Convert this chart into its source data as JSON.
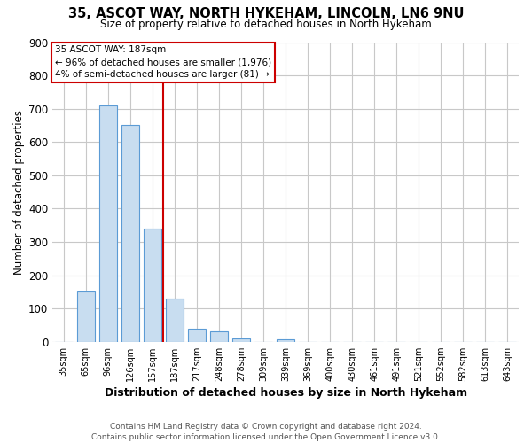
{
  "title1": "35, ASCOT WAY, NORTH HYKEHAM, LINCOLN, LN6 9NU",
  "title2": "Size of property relative to detached houses in North Hykeham",
  "xlabel": "Distribution of detached houses by size in North Hykeham",
  "ylabel": "Number of detached properties",
  "categories": [
    "35sqm",
    "65sqm",
    "96sqm",
    "126sqm",
    "157sqm",
    "187sqm",
    "217sqm",
    "248sqm",
    "278sqm",
    "309sqm",
    "339sqm",
    "369sqm",
    "400sqm",
    "430sqm",
    "461sqm",
    "491sqm",
    "521sqm",
    "552sqm",
    "582sqm",
    "613sqm",
    "643sqm"
  ],
  "values": [
    0,
    150,
    710,
    650,
    340,
    130,
    40,
    30,
    10,
    0,
    8,
    0,
    0,
    0,
    0,
    0,
    0,
    0,
    0,
    0,
    0
  ],
  "bar_color": "#c8ddf0",
  "bar_edgecolor": "#5b9bd5",
  "vline_x": 4.5,
  "vline_color": "#cc0000",
  "annotation_title": "35 ASCOT WAY: 187sqm",
  "annotation_line1": "← 96% of detached houses are smaller (1,976)",
  "annotation_line2": "4% of semi-detached houses are larger (81) →",
  "annotation_box_color": "#cc0000",
  "ylim": [
    0,
    900
  ],
  "yticks": [
    0,
    100,
    200,
    300,
    400,
    500,
    600,
    700,
    800,
    900
  ],
  "footer1": "Contains HM Land Registry data © Crown copyright and database right 2024.",
  "footer2": "Contains public sector information licensed under the Open Government Licence v3.0.",
  "background_color": "#ffffff",
  "grid_color": "#c8c8c8"
}
